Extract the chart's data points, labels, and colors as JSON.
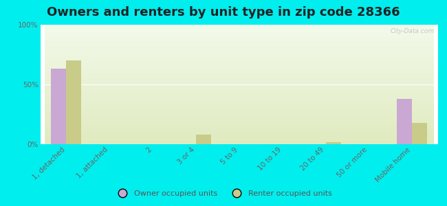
{
  "title": "Owners and renters by unit type in zip code 28366",
  "categories": [
    "1, detached",
    "1, attached",
    "2",
    "3 or 4",
    "5 to 9",
    "10 to 19",
    "20 to 49",
    "50 or more",
    "Mobile home"
  ],
  "owner_values": [
    63,
    0,
    0,
    0,
    0,
    0,
    0,
    0,
    38
  ],
  "renter_values": [
    70,
    0,
    0,
    8,
    0,
    0,
    2,
    0,
    18
  ],
  "owner_color": "#c9a8d4",
  "renter_color": "#c8cc88",
  "background_color": "#00eeee",
  "ylabel_ticks": [
    "0%",
    "50%",
    "100%"
  ],
  "ytick_values": [
    0,
    50,
    100
  ],
  "ylim": [
    0,
    100
  ],
  "bar_width": 0.35,
  "title_fontsize": 13,
  "tick_fontsize": 7.5,
  "legend_labels": [
    "Owner occupied units",
    "Renter occupied units"
  ],
  "watermark": "City-Data.com"
}
